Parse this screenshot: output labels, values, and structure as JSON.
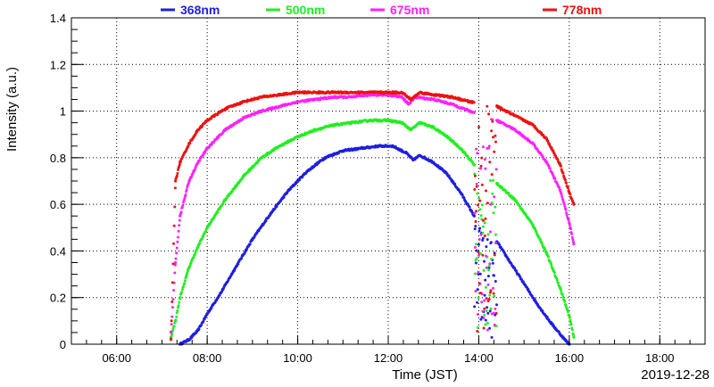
{
  "chart_data": {
    "type": "scatter",
    "title": "",
    "xlabel": "Time (JST)",
    "ylabel": "Intensity (a.u.)",
    "date_label": "2019-12-28",
    "xlim": [
      5.0,
      19.0
    ],
    "ylim": [
      0,
      1.4
    ],
    "x_ticks": [
      "06:00",
      "08:00",
      "10:00",
      "12:00",
      "14:00",
      "16:00",
      "18:00"
    ],
    "y_ticks": [
      "0",
      "0.2",
      "0.4",
      "0.6",
      "0.8",
      "1",
      "1.2",
      "1.4"
    ],
    "grid": true,
    "legend_position": "top",
    "series": [
      {
        "name": "368nm",
        "color": "#1f1fe0",
        "points": [
          [
            7.4,
            0.0
          ],
          [
            7.6,
            0.02
          ],
          [
            7.8,
            0.06
          ],
          [
            8.0,
            0.13
          ],
          [
            8.3,
            0.22
          ],
          [
            8.6,
            0.32
          ],
          [
            9.0,
            0.45
          ],
          [
            9.4,
            0.56
          ],
          [
            9.8,
            0.66
          ],
          [
            10.2,
            0.74
          ],
          [
            10.6,
            0.8
          ],
          [
            11.0,
            0.83
          ],
          [
            11.4,
            0.84
          ],
          [
            11.8,
            0.85
          ],
          [
            12.1,
            0.85
          ],
          [
            12.4,
            0.82
          ],
          [
            12.55,
            0.79
          ],
          [
            12.7,
            0.81
          ],
          [
            13.0,
            0.78
          ],
          [
            13.3,
            0.73
          ],
          [
            13.6,
            0.65
          ],
          [
            13.9,
            0.55
          ],
          [
            14.4,
            0.44
          ],
          [
            14.7,
            0.35
          ],
          [
            15.0,
            0.26
          ],
          [
            15.3,
            0.17
          ],
          [
            15.6,
            0.09
          ],
          [
            15.9,
            0.02
          ],
          [
            16.0,
            0.0
          ]
        ]
      },
      {
        "name": "500nm",
        "color": "#22ee22",
        "points": [
          [
            7.2,
            0.03
          ],
          [
            7.3,
            0.1
          ],
          [
            7.4,
            0.2
          ],
          [
            7.6,
            0.33
          ],
          [
            7.8,
            0.42
          ],
          [
            8.0,
            0.5
          ],
          [
            8.4,
            0.62
          ],
          [
            8.8,
            0.72
          ],
          [
            9.2,
            0.8
          ],
          [
            9.6,
            0.85
          ],
          [
            10.0,
            0.89
          ],
          [
            10.4,
            0.92
          ],
          [
            10.8,
            0.94
          ],
          [
            11.2,
            0.95
          ],
          [
            11.6,
            0.96
          ],
          [
            12.0,
            0.96
          ],
          [
            12.3,
            0.95
          ],
          [
            12.5,
            0.92
          ],
          [
            12.7,
            0.95
          ],
          [
            13.0,
            0.93
          ],
          [
            13.3,
            0.89
          ],
          [
            13.6,
            0.84
          ],
          [
            13.9,
            0.77
          ],
          [
            14.4,
            0.69
          ],
          [
            14.8,
            0.62
          ],
          [
            15.2,
            0.51
          ],
          [
            15.5,
            0.39
          ],
          [
            15.8,
            0.24
          ],
          [
            16.0,
            0.12
          ],
          [
            16.1,
            0.03
          ]
        ]
      },
      {
        "name": "675nm",
        "color": "#ff22ff",
        "points": [
          [
            7.2,
            0.05
          ],
          [
            7.3,
            0.35
          ],
          [
            7.4,
            0.55
          ],
          [
            7.6,
            0.7
          ],
          [
            7.8,
            0.78
          ],
          [
            8.0,
            0.84
          ],
          [
            8.4,
            0.92
          ],
          [
            8.8,
            0.97
          ],
          [
            9.2,
            1.0
          ],
          [
            9.6,
            1.02
          ],
          [
            10.0,
            1.04
          ],
          [
            10.4,
            1.05
          ],
          [
            10.8,
            1.06
          ],
          [
            11.2,
            1.06
          ],
          [
            11.6,
            1.07
          ],
          [
            12.0,
            1.07
          ],
          [
            12.3,
            1.06
          ],
          [
            12.45,
            1.03
          ],
          [
            12.6,
            1.06
          ],
          [
            13.0,
            1.05
          ],
          [
            13.4,
            1.03
          ],
          [
            13.8,
            1.0
          ],
          [
            14.4,
            0.96
          ],
          [
            14.8,
            0.92
          ],
          [
            15.2,
            0.86
          ],
          [
            15.5,
            0.78
          ],
          [
            15.8,
            0.66
          ],
          [
            16.0,
            0.52
          ],
          [
            16.1,
            0.43
          ]
        ]
      },
      {
        "name": "778nm",
        "color": "#ee1111",
        "points": [
          [
            7.2,
            0.02
          ],
          [
            7.3,
            0.7
          ],
          [
            7.4,
            0.78
          ],
          [
            7.6,
            0.86
          ],
          [
            7.8,
            0.92
          ],
          [
            8.0,
            0.96
          ],
          [
            8.4,
            1.01
          ],
          [
            8.8,
            1.04
          ],
          [
            9.2,
            1.06
          ],
          [
            9.6,
            1.07
          ],
          [
            10.0,
            1.08
          ],
          [
            10.4,
            1.08
          ],
          [
            10.8,
            1.08
          ],
          [
            11.2,
            1.08
          ],
          [
            11.6,
            1.08
          ],
          [
            12.0,
            1.08
          ],
          [
            12.3,
            1.08
          ],
          [
            12.5,
            1.05
          ],
          [
            12.7,
            1.08
          ],
          [
            13.0,
            1.07
          ],
          [
            13.4,
            1.06
          ],
          [
            13.8,
            1.04
          ],
          [
            14.4,
            1.02
          ],
          [
            14.8,
            0.98
          ],
          [
            15.2,
            0.94
          ],
          [
            15.5,
            0.88
          ],
          [
            15.8,
            0.77
          ],
          [
            16.0,
            0.65
          ],
          [
            16.1,
            0.6
          ]
        ]
      }
    ],
    "cloud_interval": [
      13.9,
      14.4
    ]
  }
}
